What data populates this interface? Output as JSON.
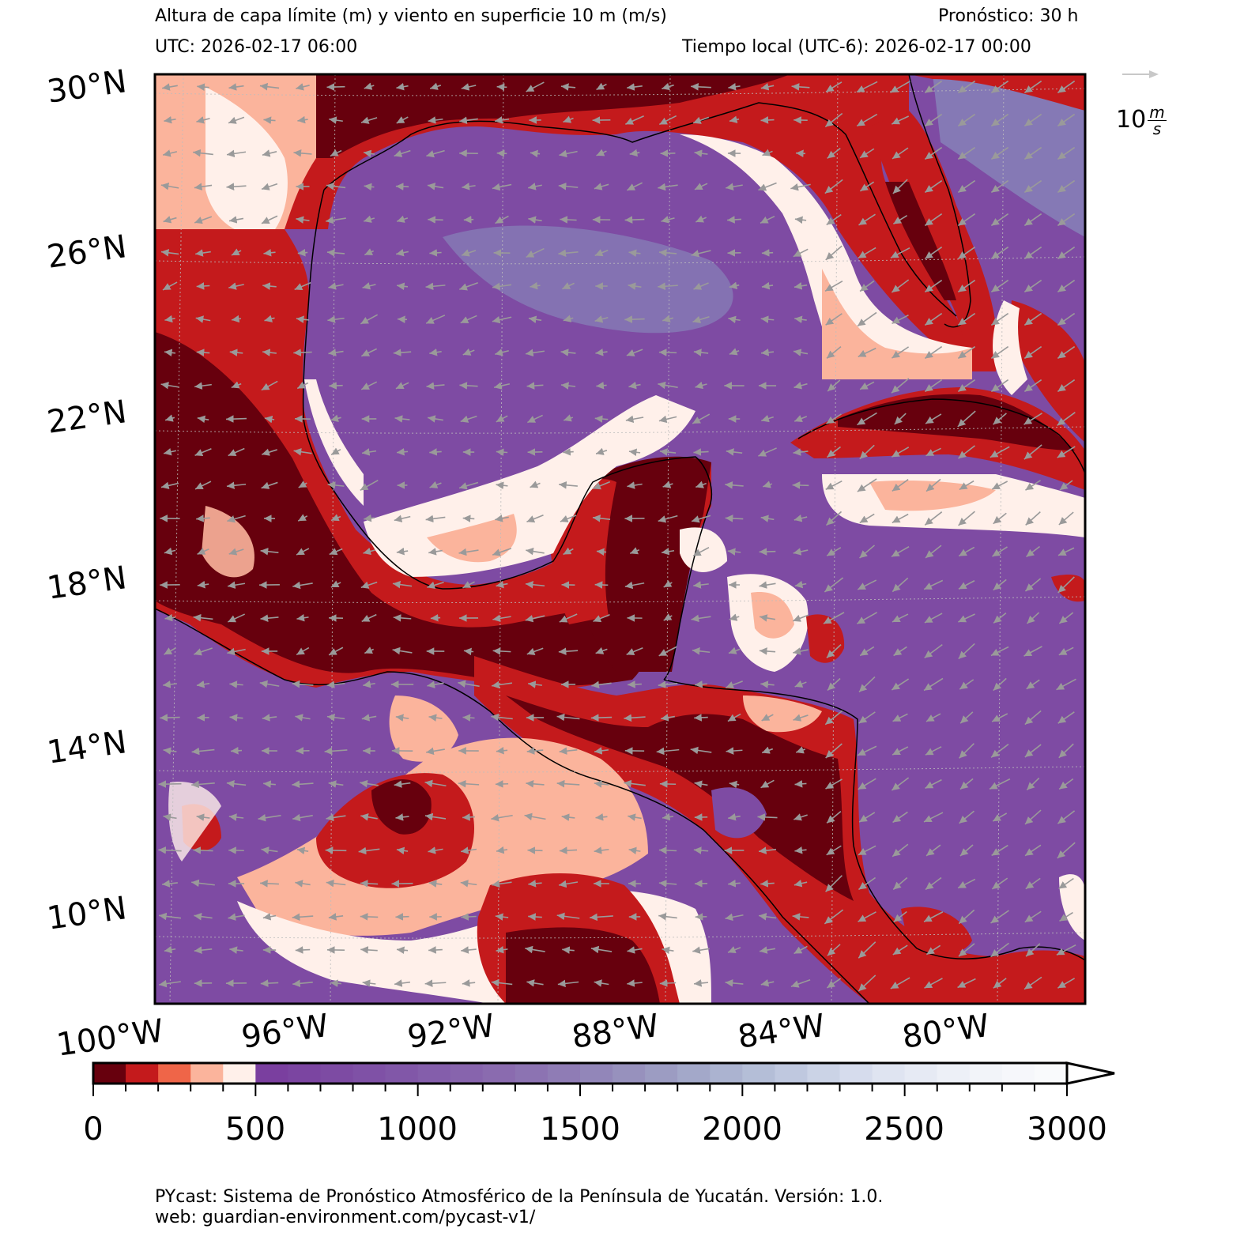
{
  "header": {
    "title": "Altura de capa límite (m) y viento en superficie 10 m (m/s)",
    "forecast": "Pronóstico: 30 h",
    "utc": "UTC:  2026-02-17 06:00",
    "local": "Tiempo local (UTC-6): 2026-02-17 00:00"
  },
  "wind_key": {
    "label": "10",
    "unit_num": "m",
    "unit_den": "s",
    "speed_ms": 10
  },
  "map": {
    "lat_labels": [
      "30°N",
      "26°N",
      "22°N",
      "18°N",
      "14°N",
      "10°N"
    ],
    "lon_labels": [
      "100°W",
      "96°W",
      "92°W",
      "88°W",
      "84°W",
      "80°W"
    ],
    "extent": {
      "lon_min": -100,
      "lon_max": -77.5,
      "lat_min": 8,
      "lat_max": 30
    },
    "colors": {
      "land_dark": "#67000d",
      "land_red": "#c41a1c",
      "land_orange": "#ef6548",
      "land_salmon": "#fbb49c",
      "land_pale": "#fff0ea",
      "ocean_purple": "#7e4ba3",
      "ocean_violet": "#8a63aa",
      "ocean_bluish": "#8579b5",
      "coast": "#000000",
      "arrow": "#9a9a9a"
    }
  },
  "colorbar": {
    "ticks": [
      "0",
      "500",
      "1000",
      "1500",
      "2000",
      "2500",
      "3000"
    ],
    "min": 0,
    "max": 3000,
    "step": 100,
    "extend": "max",
    "colors": [
      "#67000d",
      "#c41a1c",
      "#ef6548",
      "#fbb49c",
      "#fff0ea",
      "#7a3f9f",
      "#7b45a1",
      "#7d4ba3",
      "#7f51a6",
      "#8157a8",
      "#845eab",
      "#8764ad",
      "#8a6baf",
      "#8c73b2",
      "#8f7cb5",
      "#9286b9",
      "#9791bd",
      "#9c9cc2",
      "#a3a8c9",
      "#abb3d0",
      "#b4bed7",
      "#bfc8df",
      "#cbd3e6",
      "#d6dced",
      "#dfe4f1",
      "#e6eaf4",
      "#edf0f7",
      "#f2f4f9",
      "#f6f7fb",
      "#f9fafc"
    ]
  },
  "footer": {
    "line1": "PYcast: Sistema de Pronóstico Atmosférico de la Península de Yucatán. Versión: 1.0.",
    "line2": "web: guardian-environment.com/pycast-v1/"
  }
}
